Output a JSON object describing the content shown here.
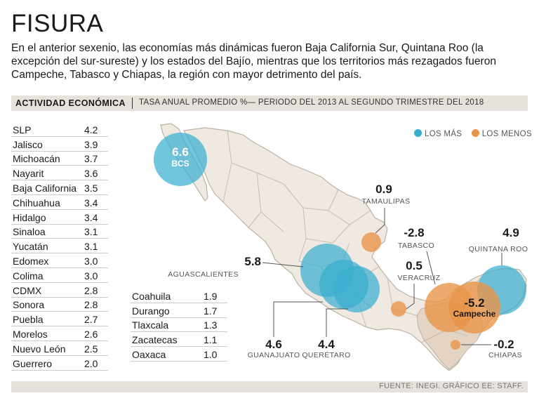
{
  "title": "FISURA",
  "subtitle": "En el anterior sexenio, las economías más dinámicas fueron Baja California Sur, Quintana Roo (la excepción del sur-sureste) y los estados del Bajío, mientras que los territorios más rezagados fueron Campeche, Tabasco y Chiapas, la región con mayor detrimento del país.",
  "band": {
    "label": "ACTIVIDAD ECONÓMICA",
    "desc": "TASA ANUAL PROMEDIO %— PERIODO DEL 2013 AL SEGUNDO TRIMESTRE DEL 2018"
  },
  "legend": {
    "mas": "LOS MÁS",
    "menos": "LOS MENOS",
    "mas_color": "#3aaed0",
    "menos_color": "#e8954a"
  },
  "footer": "FUENTE: INEGI. GRÁFICO EE: STAFF.",
  "chart_data": {
    "type": "table",
    "title": "ACTIVIDAD ECONÓMICA",
    "subtitle": "TASA ANUAL PROMEDIO %— PERIODO DEL 2013 AL SEGUNDO TRIMESTRE DEL 2018",
    "table_left": [
      {
        "state": "SLP",
        "value": "4.2"
      },
      {
        "state": "Jalisco",
        "value": "3.9"
      },
      {
        "state": "Michoacán",
        "value": "3.7"
      },
      {
        "state": "Nayarit",
        "value": "3.6"
      },
      {
        "state": "Baja California",
        "value": "3.5"
      },
      {
        "state": "Chihuahua",
        "value": "3.4"
      },
      {
        "state": "Hidalgo",
        "value": "3.4"
      },
      {
        "state": "Sinaloa",
        "value": "3.1"
      },
      {
        "state": "Yucatán",
        "value": "3.1"
      },
      {
        "state": "Edomex",
        "value": "3.0"
      },
      {
        "state": "Colima",
        "value": "3.0"
      },
      {
        "state": "CDMX",
        "value": "2.8"
      },
      {
        "state": "Sonora",
        "value": "2.8"
      },
      {
        "state": "Puebla",
        "value": "2.7"
      },
      {
        "state": "Morelos",
        "value": "2.6"
      },
      {
        "state": "Nuevo León",
        "value": "2.5"
      },
      {
        "state": "Guerrero",
        "value": "2.0"
      }
    ],
    "table_right": [
      {
        "state": "Coahuila",
        "value": "1.9"
      },
      {
        "state": "Durango",
        "value": "1.7"
      },
      {
        "state": "Tlaxcala",
        "value": "1.3"
      },
      {
        "state": "Zacatecas",
        "value": "1.1"
      },
      {
        "state": "Oaxaca",
        "value": "1.0"
      }
    ],
    "map_bubbles": [
      {
        "id": "bcs",
        "label": "BCS",
        "value": 6.6,
        "display": "6.6",
        "group": "mas"
      },
      {
        "id": "quintana-roo",
        "label": "QUINTANA ROO",
        "value": 4.9,
        "display": "4.9",
        "group": "mas"
      },
      {
        "id": "aguascalientes",
        "label": "AGUASCALIENTES",
        "value": 5.8,
        "display": "5.8",
        "group": "mas"
      },
      {
        "id": "guanajuato",
        "label": "GUANAJUATO",
        "value": 4.6,
        "display": "4.6",
        "group": "mas"
      },
      {
        "id": "queretaro",
        "label": "QUERÉTARO",
        "value": 4.4,
        "display": "4.4",
        "group": "mas"
      },
      {
        "id": "tamaulipas",
        "label": "TAMAULIPAS",
        "value": 0.9,
        "display": "0.9",
        "group": "menos"
      },
      {
        "id": "tabasco",
        "label": "TABASCO",
        "value": -2.8,
        "display": "-2.8",
        "group": "menos"
      },
      {
        "id": "veracruz",
        "label": "VERACRUZ",
        "value": 0.5,
        "display": "0.5",
        "group": "menos"
      },
      {
        "id": "campeche",
        "label": "Campeche",
        "value": -5.2,
        "display": "-5.2",
        "group": "menos"
      },
      {
        "id": "chiapas",
        "label": "CHIAPAS",
        "value": -0.2,
        "display": "-0.2",
        "group": "menos"
      }
    ]
  }
}
